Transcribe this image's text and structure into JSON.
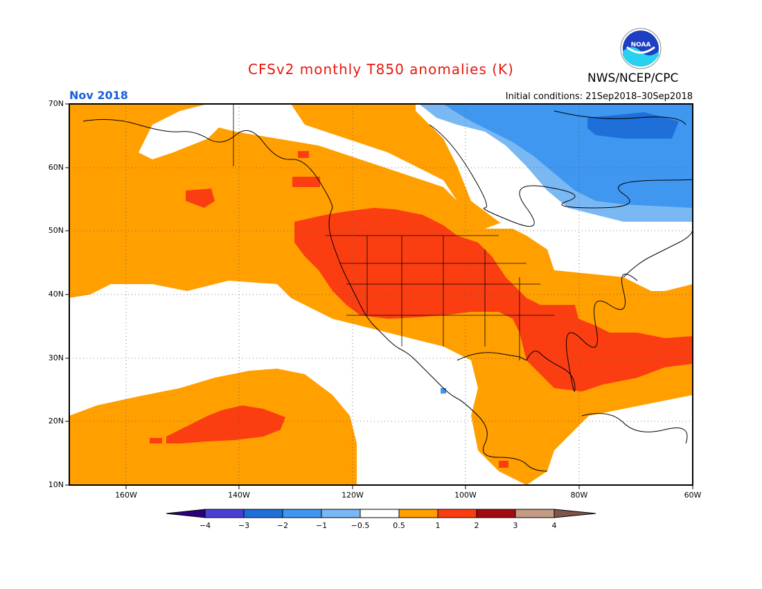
{
  "header": {
    "title": "CFSv2 monthly T850 anomalies (K)",
    "month": "Nov 2018",
    "initial_conditions": "Initial conditions: 21Sep2018–30Sep2018",
    "agency": "NWS/NCEP/CPC",
    "logo_text": "NOAA"
  },
  "map": {
    "lat_labels": [
      "70N",
      "60N",
      "50N",
      "40N",
      "30N",
      "20N",
      "10N"
    ],
    "lon_labels": [
      "160W",
      "140W",
      "120W",
      "100W",
      "80W",
      "60W"
    ],
    "lat_range": [
      10,
      70
    ],
    "lon_range": [
      -171,
      -60
    ],
    "grid": true
  },
  "colorbar": {
    "labels": [
      "−4",
      "−3",
      "−2",
      "−1",
      "−0.5",
      "0.5",
      "1",
      "2",
      "3",
      "4"
    ],
    "colors": [
      "#2c007c",
      "#4a3fd3",
      "#1f6fd9",
      "#3f97f0",
      "#7ab8f4",
      "#ffffff",
      "#ff9f00",
      "#fb3e12",
      "#a30b10",
      "#c49a84",
      "#7e5548"
    ]
  },
  "legend_colors": {
    "orange": "#ff9f00",
    "red": "#fb3e12",
    "light_blue": "#7ab8f4",
    "mid_blue": "#3f97f0",
    "dark_blue": "#1f6fd9"
  }
}
